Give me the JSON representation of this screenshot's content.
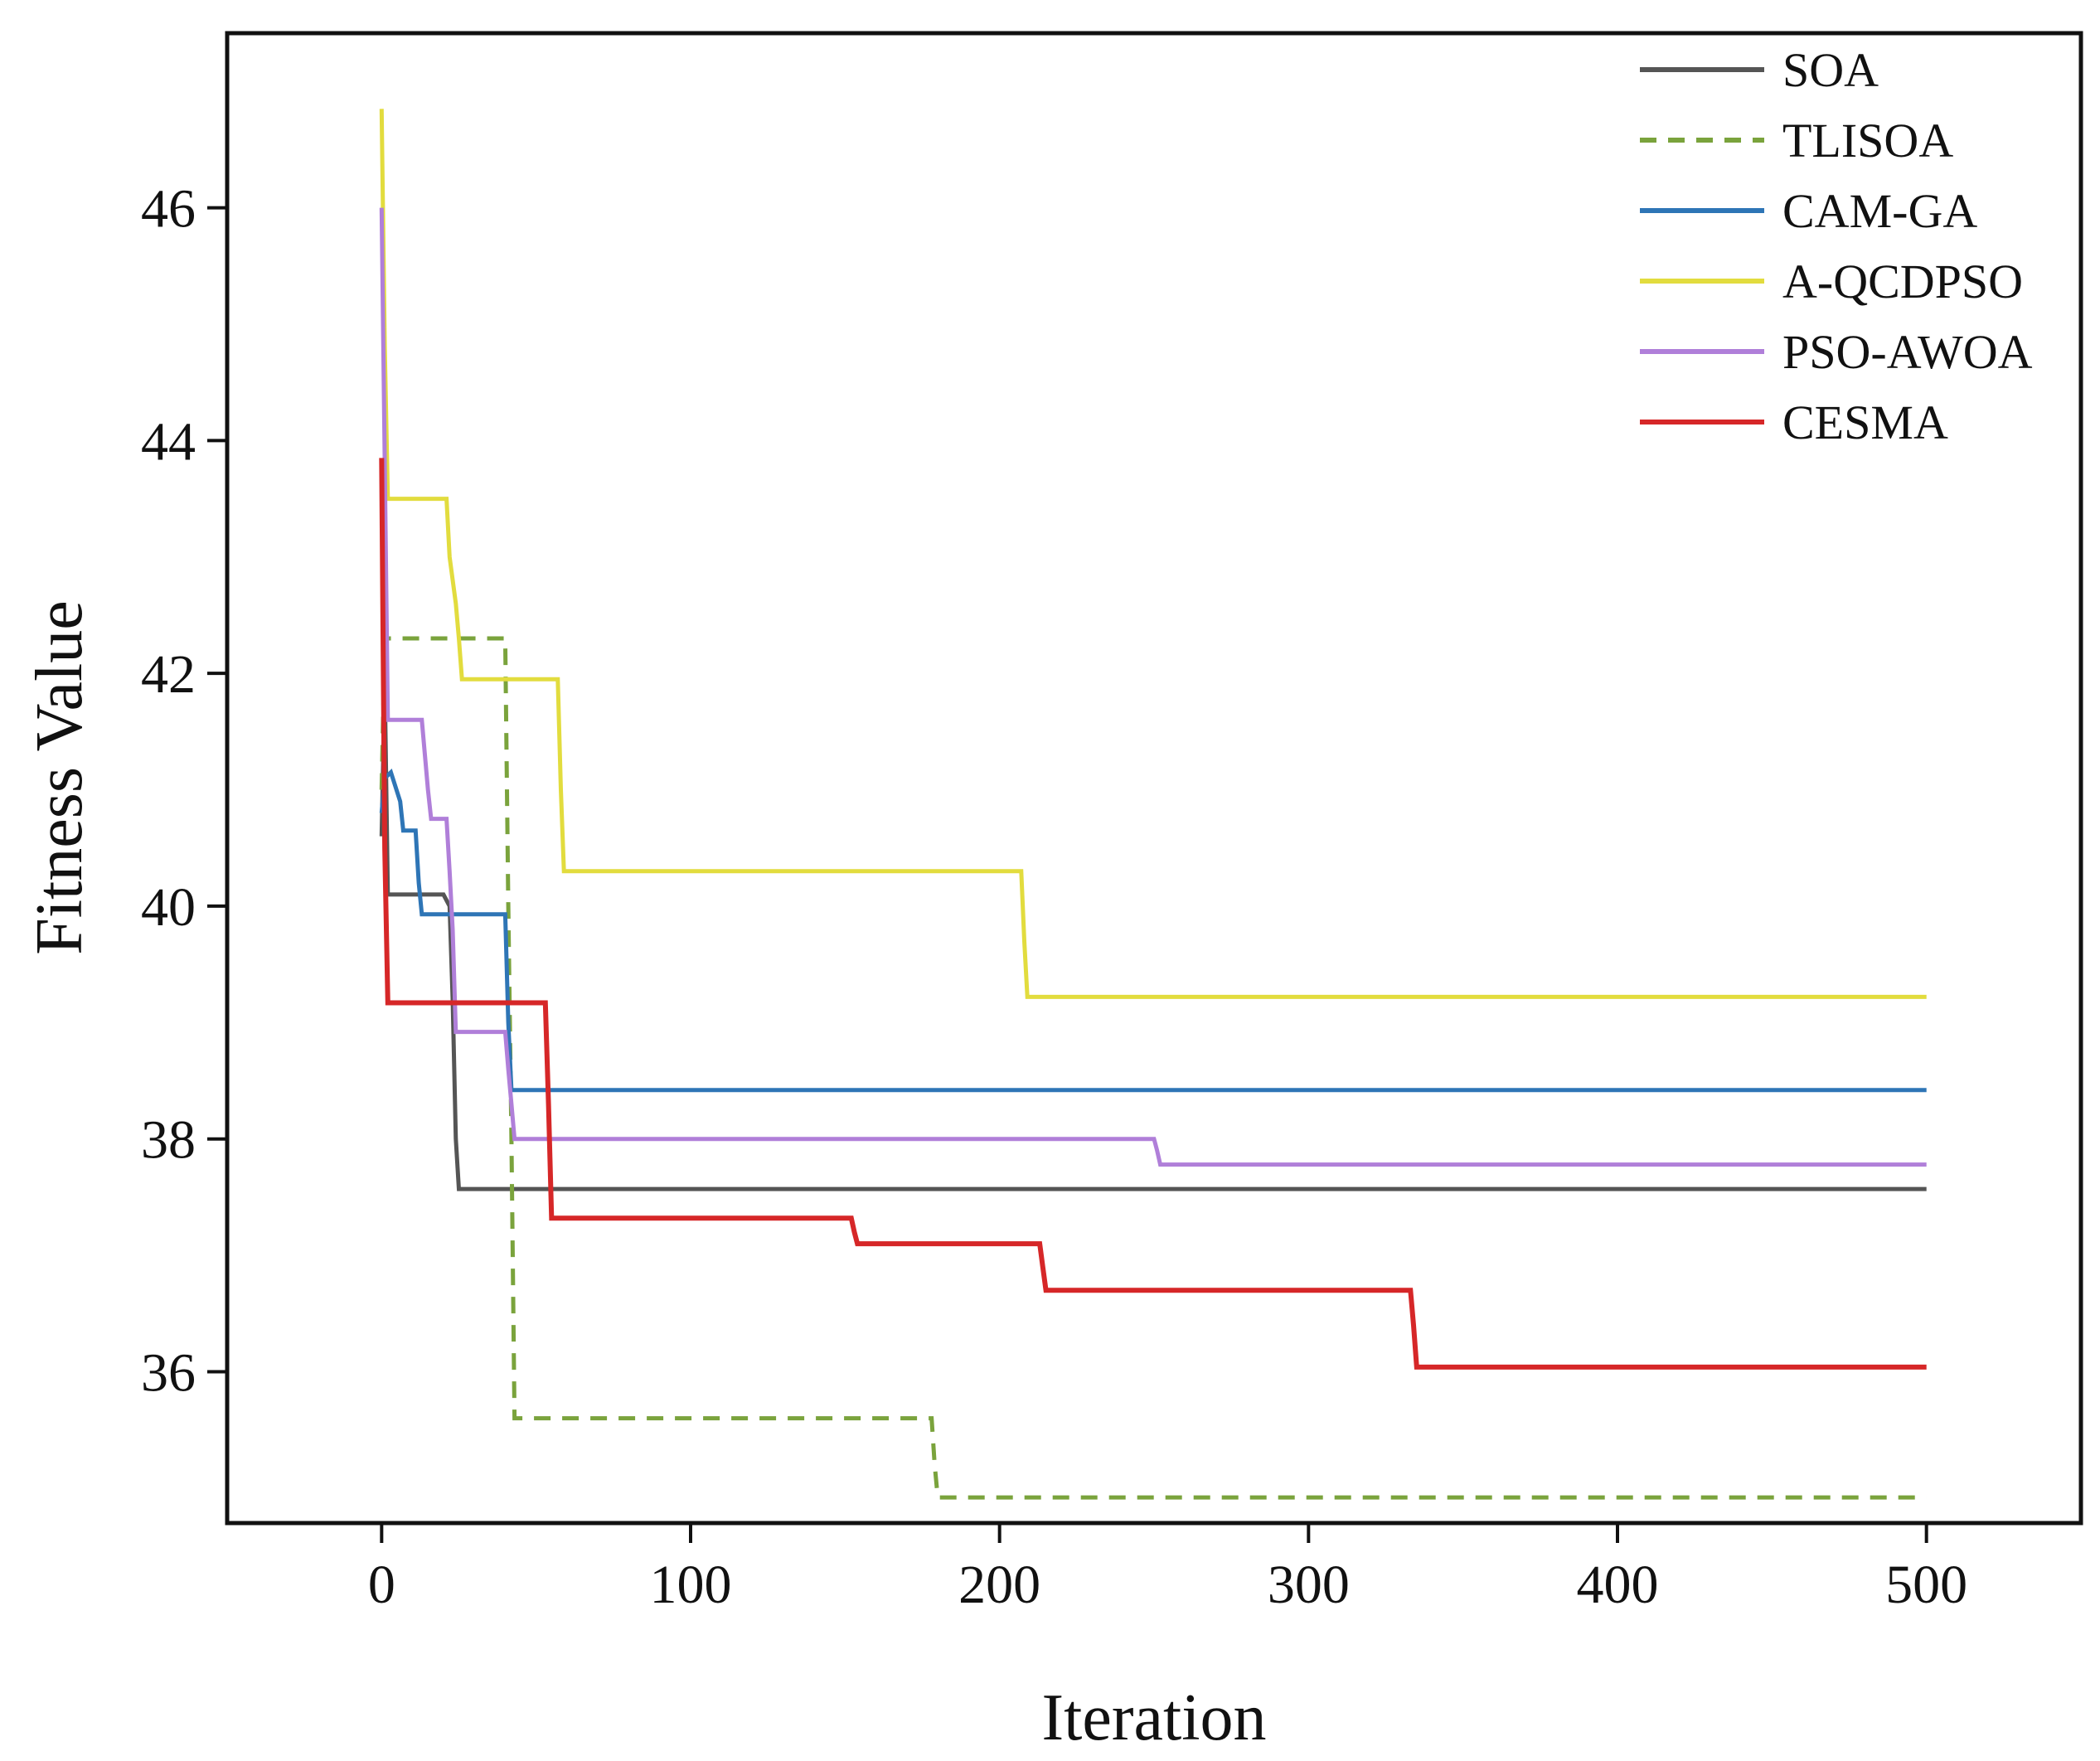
{
  "chart_data": {
    "type": "line",
    "title": "",
    "xlabel": "Iteration",
    "ylabel": "Fitness Value",
    "xlim": [
      -50,
      550
    ],
    "ylim": [
      34.7,
      47.5
    ],
    "xticks": [
      0,
      100,
      200,
      300,
      400,
      500
    ],
    "yticks": [
      36,
      38,
      40,
      42,
      44,
      46
    ],
    "grid": false,
    "legend_position": "top-right",
    "series": [
      {
        "name": "SOA",
        "color": "#555555",
        "dashed": false,
        "x": [
          0,
          1,
          2,
          20,
          22,
          23,
          24,
          25,
          500
        ],
        "y": [
          40.6,
          41.9,
          40.1,
          40.1,
          40.0,
          39.2,
          38.0,
          37.57,
          37.57
        ]
      },
      {
        "name": "TLISOA",
        "color": "#7aa33c",
        "dashed": true,
        "x": [
          0,
          1,
          40,
          41,
          42,
          43,
          178,
          179,
          180,
          500
        ],
        "y": [
          41.0,
          42.3,
          42.3,
          40.0,
          38.0,
          35.6,
          35.6,
          35.2,
          34.92,
          34.92
        ]
      },
      {
        "name": "CAM-GA",
        "color": "#2e75b6",
        "dashed": false,
        "x": [
          0,
          1,
          3,
          6,
          7,
          11,
          12,
          13,
          40,
          41,
          42,
          500
        ],
        "y": [
          40.8,
          41.1,
          41.15,
          40.9,
          40.65,
          40.65,
          40.2,
          39.93,
          39.93,
          39.0,
          38.42,
          38.42
        ]
      },
      {
        "name": "A-QCDPSO",
        "color": "#e2dc3e",
        "dashed": false,
        "x": [
          0,
          1,
          2,
          21,
          22,
          24,
          25,
          26,
          57,
          58,
          59,
          207,
          208,
          209,
          500
        ],
        "y": [
          46.85,
          44.8,
          43.5,
          43.5,
          43.0,
          42.6,
          42.3,
          41.95,
          41.95,
          41.0,
          40.3,
          40.3,
          39.7,
          39.22,
          39.22
        ]
      },
      {
        "name": "PSO-AWOA",
        "color": "#b07fd9",
        "dashed": false,
        "x": [
          0,
          1,
          2,
          13,
          14,
          15,
          16,
          21,
          22,
          23,
          24,
          40,
          41,
          42,
          43,
          250,
          251,
          252,
          500
        ],
        "y": [
          46.0,
          43.8,
          41.6,
          41.6,
          41.3,
          41.0,
          40.75,
          40.75,
          40.3,
          39.8,
          38.92,
          38.92,
          38.6,
          38.3,
          38.0,
          38.0,
          37.9,
          37.78,
          37.78
        ]
      },
      {
        "name": "CESMA",
        "color": "#d62728",
        "dashed": false,
        "x": [
          0,
          1,
          2,
          53,
          54,
          55,
          152,
          153,
          154,
          213,
          214,
          215,
          333,
          334,
          335,
          500
        ],
        "y": [
          43.85,
          40.5,
          39.17,
          39.17,
          38.3,
          37.32,
          37.32,
          37.2,
          37.1,
          37.1,
          36.9,
          36.7,
          36.7,
          36.4,
          36.04,
          36.04
        ]
      }
    ]
  }
}
